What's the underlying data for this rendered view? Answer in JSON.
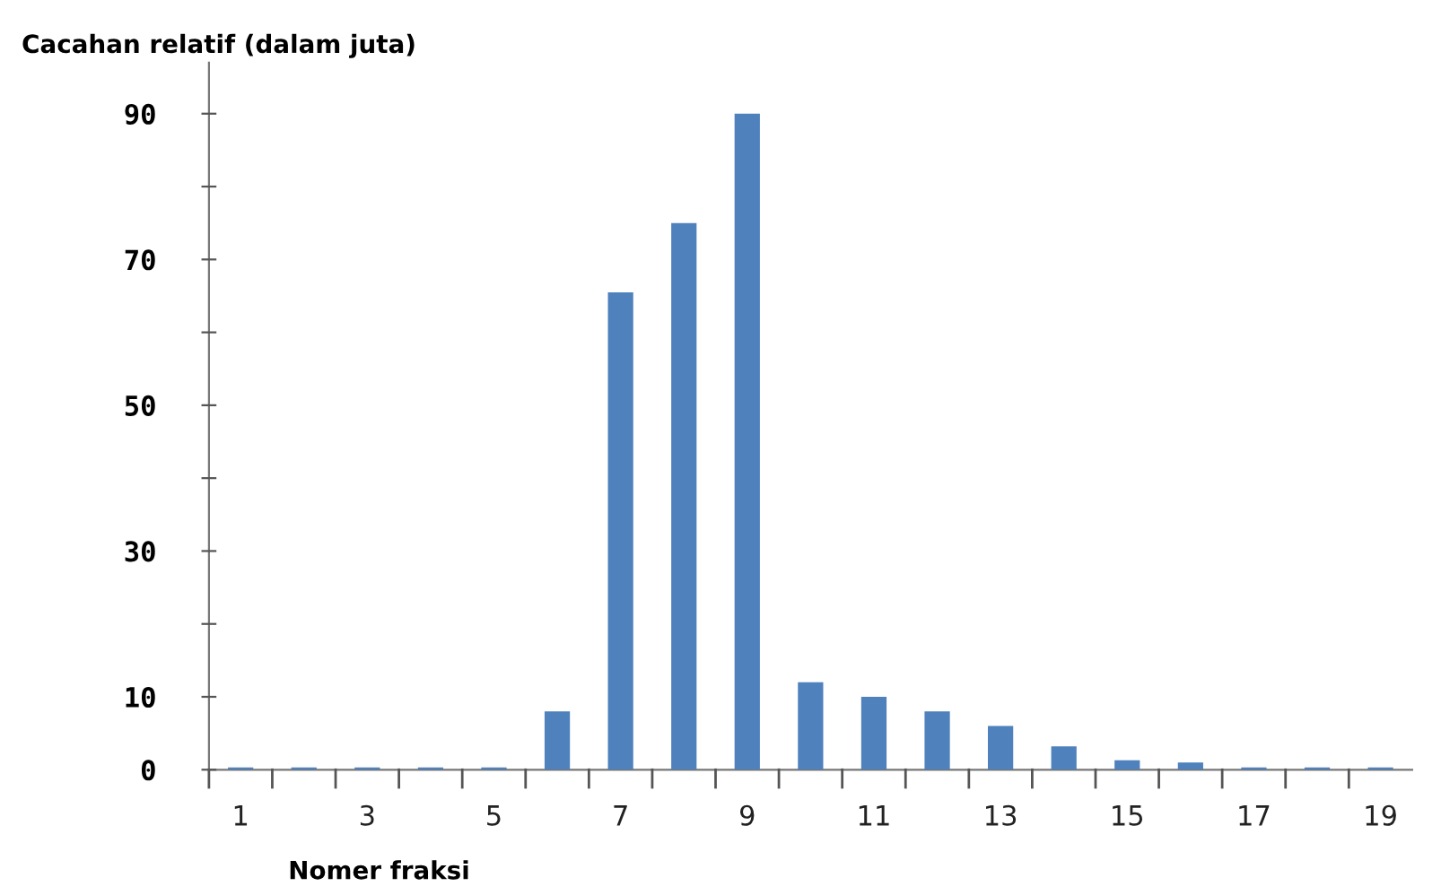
{
  "chart_data": {
    "type": "bar",
    "ylabel": "Cacahan relatif (dalam juta)",
    "xlabel": "Nomer fraksi",
    "categories": [
      "1",
      null,
      "3",
      null,
      "5",
      null,
      "7",
      null,
      "9",
      null,
      "11",
      null,
      "13",
      null,
      "15",
      null,
      "17",
      null,
      "19"
    ],
    "values": [
      0.3,
      0.3,
      0.3,
      0.3,
      0.3,
      8,
      65.5,
      75,
      90,
      12,
      10,
      8,
      6,
      3.2,
      1.3,
      1,
      0.3,
      0.3,
      0.3
    ],
    "color": "#4f81bd",
    "ylim": [
      0,
      97
    ],
    "yticks": [
      0,
      10,
      {
        "value": 20,
        "label": null
      },
      30,
      {
        "value": 40,
        "label": null
      },
      50,
      {
        "value": 60,
        "label": null
      },
      70,
      {
        "value": 80,
        "label": null
      },
      90
    ],
    "grid": false
  }
}
